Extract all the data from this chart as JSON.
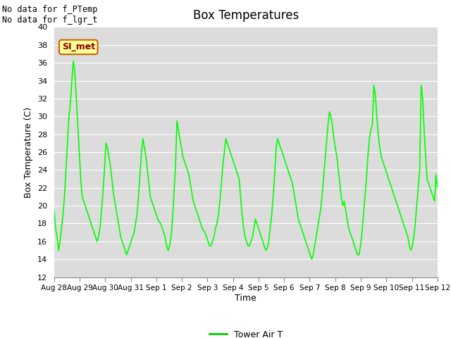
{
  "title": "Box Temperatures",
  "xlabel": "Time",
  "ylabel": "Box Temperature (C)",
  "ylim": [
    12,
    40
  ],
  "bg_color": "#dcdcdc",
  "line_color": "#00ff00",
  "line_width": 1.2,
  "annotation_text": "No data for f_PTemp\nNo data for f_lgr_t",
  "legend_label": "Tower Air T",
  "legend_line_color": "#00cc00",
  "box_label": "SI_met",
  "box_label_color": "#8b0000",
  "box_bg_color": "#ffff99",
  "xtick_labels": [
    "Aug 28",
    "Aug 29",
    "Aug 30",
    "Aug 31",
    "Sep 1",
    "Sep 2",
    "Sep 3",
    "Sep 4",
    "Sep 5",
    "Sep 6",
    "Sep 7",
    "Sep 8",
    "Sep 9",
    "Sep 10",
    "Sep 11",
    "Sep 12"
  ],
  "y_data": [
    19.5,
    17.5,
    16.5,
    15.0,
    16.0,
    17.5,
    19.0,
    21.0,
    24.0,
    27.0,
    30.0,
    31.5,
    34.0,
    36.2,
    35.0,
    32.0,
    29.0,
    26.0,
    23.0,
    21.0,
    20.5,
    20.0,
    19.5,
    19.0,
    18.5,
    18.0,
    17.5,
    17.0,
    16.5,
    16.0,
    16.5,
    17.5,
    19.5,
    21.5,
    24.0,
    27.0,
    26.5,
    25.5,
    24.5,
    23.0,
    21.5,
    20.5,
    19.5,
    18.5,
    17.5,
    16.5,
    16.0,
    15.5,
    15.0,
    14.5,
    15.0,
    15.5,
    16.0,
    16.5,
    17.0,
    18.0,
    19.0,
    21.0,
    23.5,
    26.0,
    27.5,
    26.5,
    25.5,
    24.0,
    22.5,
    21.0,
    20.5,
    20.0,
    19.5,
    19.0,
    18.5,
    18.2,
    18.0,
    17.5,
    17.0,
    16.5,
    15.5,
    15.0,
    15.5,
    16.5,
    18.5,
    21.5,
    24.5,
    29.5,
    28.5,
    27.5,
    26.5,
    25.5,
    25.0,
    24.5,
    24.0,
    23.5,
    22.5,
    21.5,
    20.5,
    20.0,
    19.5,
    19.0,
    18.5,
    18.0,
    17.5,
    17.2,
    17.0,
    16.5,
    16.0,
    15.5,
    15.5,
    16.0,
    16.5,
    17.5,
    18.0,
    19.0,
    20.5,
    22.5,
    24.5,
    26.0,
    27.5,
    27.0,
    26.5,
    26.0,
    25.5,
    25.0,
    24.5,
    24.0,
    23.5,
    23.0,
    21.0,
    19.0,
    17.5,
    16.5,
    16.0,
    15.5,
    15.5,
    16.0,
    16.5,
    17.5,
    18.5,
    18.0,
    17.5,
    17.0,
    16.5,
    16.0,
    15.5,
    15.0,
    15.2,
    16.0,
    17.5,
    19.0,
    21.0,
    23.5,
    26.5,
    27.5,
    27.0,
    26.5,
    26.0,
    25.5,
    25.0,
    24.5,
    24.0,
    23.5,
    23.0,
    22.5,
    21.5,
    20.5,
    19.5,
    18.5,
    18.0,
    17.5,
    17.0,
    16.5,
    16.0,
    15.5,
    15.0,
    14.5,
    14.0,
    14.5,
    15.5,
    16.5,
    17.5,
    18.5,
    19.5,
    21.0,
    23.0,
    25.0,
    27.0,
    29.0,
    30.5,
    30.0,
    29.0,
    27.5,
    26.5,
    25.5,
    24.0,
    22.5,
    21.0,
    20.0,
    20.5,
    19.5,
    18.5,
    17.5,
    17.0,
    16.5,
    16.0,
    15.5,
    15.0,
    14.5,
    14.5,
    15.5,
    17.0,
    19.0,
    21.0,
    23.0,
    25.5,
    27.5,
    28.5,
    29.0,
    33.5,
    32.5,
    30.0,
    28.0,
    26.5,
    25.5,
    25.0,
    24.5,
    24.0,
    23.5,
    23.0,
    22.5,
    22.0,
    21.5,
    21.0,
    20.5,
    20.0,
    19.5,
    19.0,
    18.5,
    18.0,
    17.5,
    17.0,
    16.5,
    15.5,
    15.0,
    15.5,
    16.5,
    18.0,
    20.0,
    22.0,
    24.0,
    33.5,
    32.0,
    28.5,
    25.5,
    23.0,
    22.5,
    22.0,
    21.5,
    21.0,
    20.5,
    23.5,
    22.0
  ]
}
